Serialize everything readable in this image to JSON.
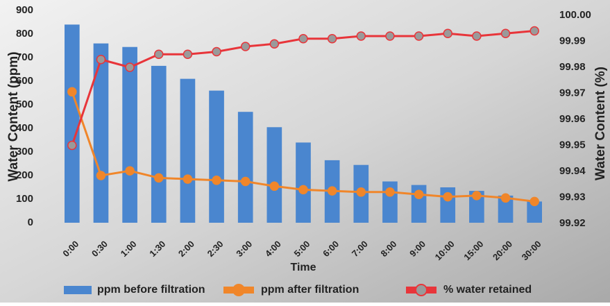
{
  "chart_data": {
    "type": "bar-line",
    "x_label": "Time",
    "y_label": "Water Content (ppm)",
    "y2_label": "Water Content (%)",
    "categories": [
      "0:00",
      "0:30",
      "1:00",
      "1:30",
      "2:00",
      "2:30",
      "3:00",
      "4:00",
      "5:00",
      "6:00",
      "7:00",
      "8:00",
      "9:00",
      "10:00",
      "15:00",
      "20:00",
      "30:00"
    ],
    "series": [
      {
        "name": "ppm before filtration",
        "type": "bar",
        "color": "#4a86cf",
        "values": [
          840,
          760,
          745,
          665,
          610,
          560,
          470,
          405,
          340,
          265,
          245,
          175,
          160,
          150,
          135,
          115,
          90
        ]
      },
      {
        "name": "ppm after filtration",
        "type": "line",
        "color": "#f0862a",
        "marker_color": "#f0862a",
        "values": [
          555,
          200,
          220,
          190,
          185,
          180,
          175,
          155,
          140,
          135,
          130,
          130,
          120,
          110,
          115,
          105,
          90
        ]
      },
      {
        "name": "% water retained",
        "type": "line",
        "axis": "y2",
        "color": "#e8353a",
        "marker_color": "#9a9a9a",
        "values": [
          99.95,
          99.983,
          99.98,
          99.985,
          99.985,
          99.986,
          99.988,
          99.989,
          99.991,
          99.991,
          99.992,
          99.992,
          99.992,
          99.993,
          99.992,
          99.993,
          99.994
        ]
      }
    ],
    "ylim": [
      0,
      900
    ],
    "yticks": [
      0,
      100,
      200,
      300,
      400,
      500,
      600,
      700,
      800,
      900
    ],
    "y2lim": [
      99.92,
      100
    ],
    "y2ticks": [
      99.92,
      99.93,
      99.94,
      99.95,
      99.96,
      99.97,
      99.98,
      99.99,
      {
        "value": 100,
        "label": "100.00"
      }
    ]
  }
}
